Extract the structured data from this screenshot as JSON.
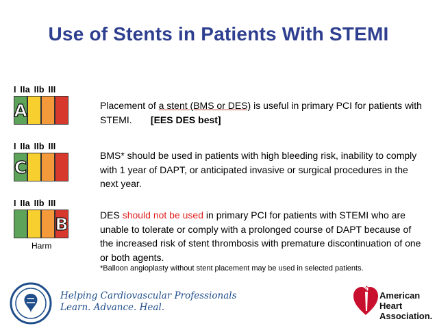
{
  "slide": {
    "title": "Use of Stents in Patients With STEMI"
  },
  "class_labels": [
    "I",
    "IIa",
    "IIb",
    "III"
  ],
  "recommendations": [
    {
      "loe": "A",
      "text_before": "Placement of ",
      "text_underlined": "a stent (BMS or DES)",
      "text_after": " is useful in primary PCI for patients with STEMI.",
      "bold_note": "[EES DES best]"
    },
    {
      "loe": "C",
      "text": "BMS* should be used in patients with high bleeding risk, inability to comply with 1 year of DAPT, or anticipated invasive or surgical procedures in the next year."
    },
    {
      "loe": "B",
      "harm_label": "Harm",
      "text_before": "DES ",
      "text_red": "should not be used",
      "text_after": " in primary PCI for patients with STEMI who are unable to tolerate or comply with a prolonged course of DAPT because of the increased risk of stent thrombosis with premature discontinuation of one or both agents."
    }
  ],
  "footnote": "*Balloon angioplasty without stent placement may be used in selected patients.",
  "footer": {
    "tagline_line1": "Helping Cardiovascular Professionals",
    "tagline_line2": "Learn. Advance. Heal.",
    "aha_line1": "American",
    "aha_line2": "Heart",
    "aha_line3": "Association."
  },
  "colors": {
    "title": "#2e3f8f",
    "class_I": "#5ea35a",
    "class_IIa": "#f7d02f",
    "class_IIb": "#f49a3b",
    "class_III": "#d8392d",
    "warning_text": "#e02020",
    "aha_red": "#c8102e"
  }
}
